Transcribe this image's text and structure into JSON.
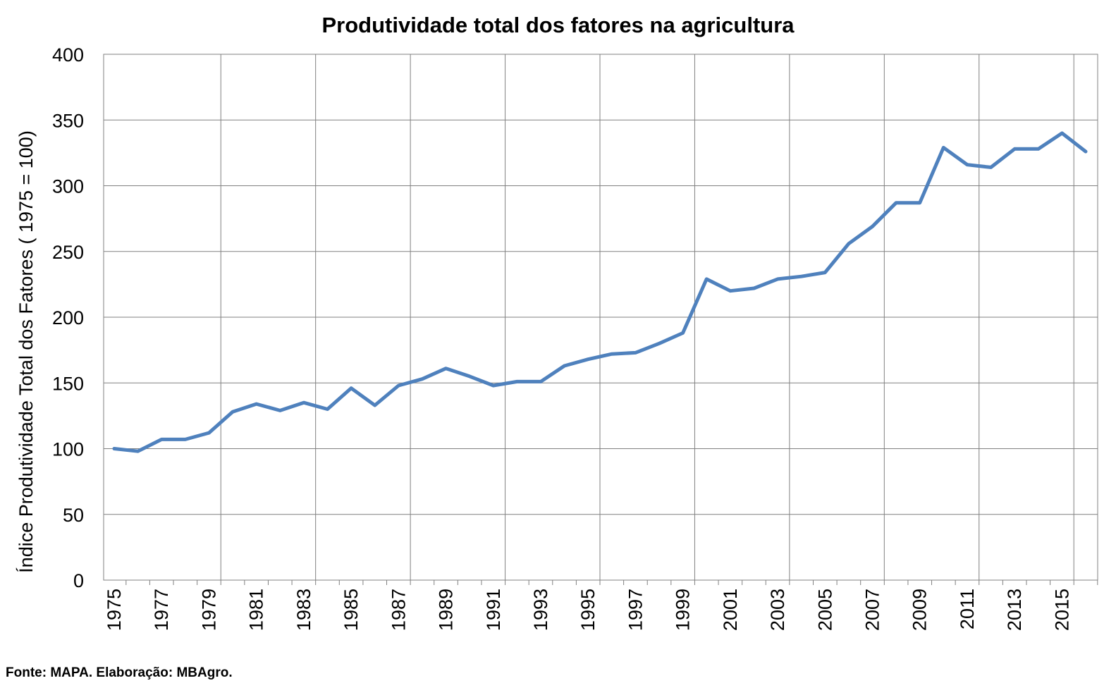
{
  "chart_data": {
    "type": "line",
    "title": "Produtividade total dos fatores na agricultura",
    "xlabel": "",
    "ylabel": "Índice Produtividade  Total dos Fatores ( 1975 = 100)",
    "ylim": [
      0,
      400
    ],
    "yticks": [
      0,
      50,
      100,
      150,
      200,
      250,
      300,
      350,
      400
    ],
    "grid": true,
    "legend": "none",
    "line_color": "#4F81BD",
    "x": [
      1975,
      1976,
      1977,
      1978,
      1979,
      1980,
      1981,
      1982,
      1983,
      1984,
      1985,
      1986,
      1987,
      1988,
      1989,
      1990,
      1991,
      1992,
      1993,
      1994,
      1995,
      1996,
      1997,
      1998,
      1999,
      2000,
      2001,
      2002,
      2003,
      2004,
      2005,
      2006,
      2007,
      2008,
      2009,
      2010,
      2011,
      2012,
      2013,
      2014,
      2015,
      2016
    ],
    "xtick_labels": [
      "1975",
      "1977",
      "1979",
      "1981",
      "1983",
      "1985",
      "1987",
      "1989",
      "1991",
      "1993",
      "1995",
      "1997",
      "1999",
      "2001",
      "2003",
      "2005",
      "2007",
      "2009",
      "2011",
      "2013",
      "2015"
    ],
    "series": [
      {
        "name": "",
        "values": [
          100,
          98,
          107,
          107,
          112,
          128,
          134,
          129,
          135,
          130,
          146,
          133,
          148,
          153,
          161,
          155,
          148,
          151,
          151,
          163,
          168,
          172,
          173,
          180,
          188,
          229,
          220,
          222,
          229,
          231,
          234,
          256,
          269,
          287,
          287,
          329,
          316,
          314,
          328,
          328,
          340,
          326
        ]
      }
    ]
  },
  "source_note": "Fonte: MAPA.  Elaboração:  MBAgro."
}
